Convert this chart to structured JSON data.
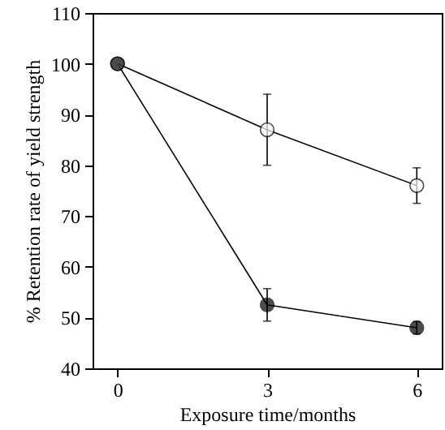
{
  "chart_data": {
    "type": "line",
    "xlabel": "Exposure time/months",
    "ylabel": "% Retention rate of yield strength",
    "x": [
      0,
      3,
      6
    ],
    "series": [
      {
        "color": "#000000",
        "values": [
          100,
          87,
          76
        ],
        "errors": [
          null,
          7,
          3.5
        ]
      },
      {
        "color": "#000000",
        "values": [
          100,
          52.5,
          48
        ],
        "errors": [
          null,
          3.2,
          1.2
        ]
      }
    ],
    "xlim": [
      -0.5,
      6.5
    ],
    "xticks": [
      0,
      3,
      6
    ],
    "ylim": [
      40,
      110
    ],
    "yticks": [
      40,
      50,
      60,
      70,
      80,
      90,
      100,
      110
    ],
    "grid": false,
    "marker": "circle",
    "line_style": "solid"
  }
}
